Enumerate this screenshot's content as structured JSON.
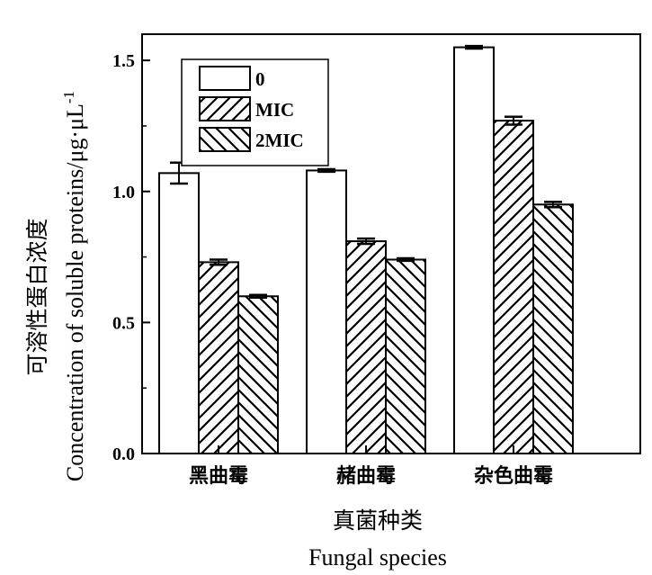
{
  "chart_data": {
    "type": "bar",
    "categories": [
      "黑曲霉",
      "赭曲霉",
      "杂色曲霉"
    ],
    "series": [
      {
        "name": "0",
        "values": [
          1.07,
          1.08,
          1.55
        ],
        "errors": [
          0.04,
          0.005,
          0.005
        ],
        "pattern": "none"
      },
      {
        "name": "MIC",
        "values": [
          0.73,
          0.81,
          1.27
        ],
        "errors": [
          0.01,
          0.01,
          0.015
        ],
        "pattern": "forward-diagonal"
      },
      {
        "name": "2MIC",
        "values": [
          0.6,
          0.74,
          0.95
        ],
        "errors": [
          0.005,
          0.005,
          0.01
        ],
        "pattern": "back-diagonal"
      }
    ],
    "xlabel_cn": "真菌种类",
    "xlabel_en": "Fungal species",
    "ylabel_cn": "可溶性蛋白浓度",
    "ylabel_en": "Concentration of soluble proteins/μg·μL",
    "ylabel_en_sup": "-1",
    "ylim": [
      0,
      1.6
    ],
    "yticks": [
      0.0,
      0.5,
      1.0,
      1.5
    ],
    "ytick_labels": [
      "0.0",
      "0.5",
      "1.0",
      "1.5"
    ],
    "legend_position": "top-left",
    "grid": false
  }
}
